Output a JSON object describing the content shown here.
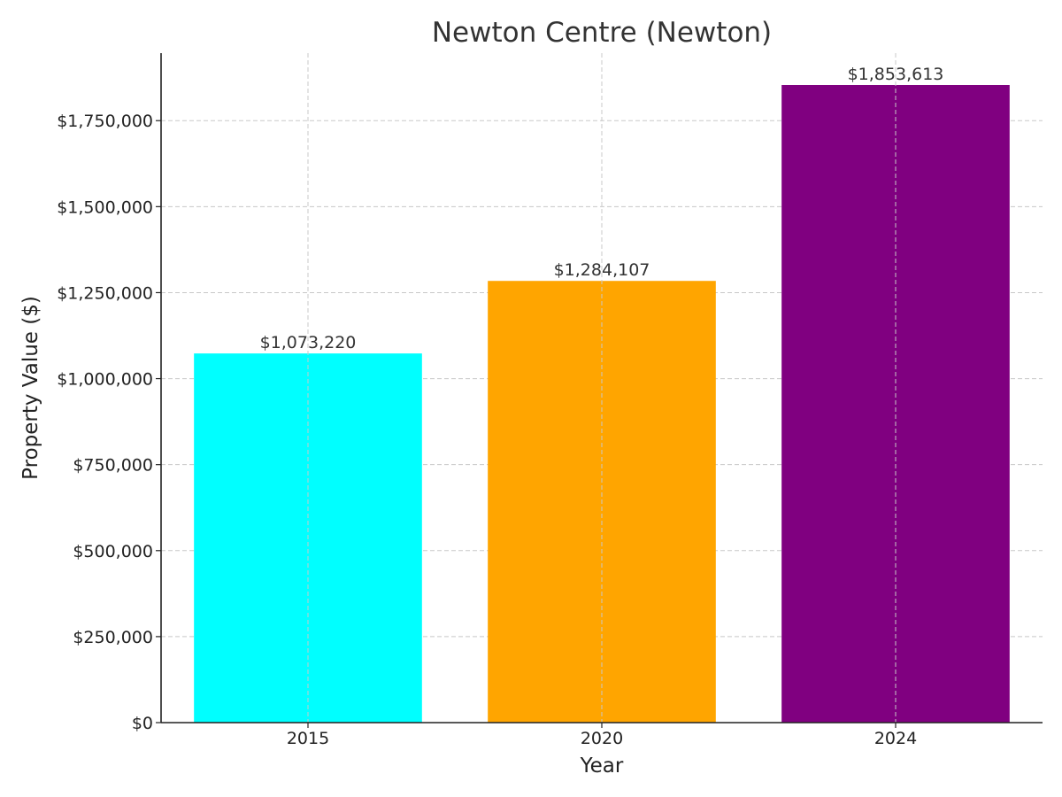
{
  "chart_data": {
    "type": "bar",
    "title": "Newton Centre (Newton)",
    "xlabel": "Year",
    "ylabel": "Property Value ($)",
    "categories": [
      "2015",
      "2020",
      "2024"
    ],
    "values": [
      1073220,
      1284107,
      1853613
    ],
    "value_labels": [
      "$1,073,220",
      "$1,284,107",
      "$1,853,613"
    ],
    "colors": [
      "#00ffff",
      "#ffa500",
      "#800080"
    ],
    "ylim": [
      0,
      1946294
    ],
    "yticks": [
      0,
      250000,
      500000,
      750000,
      1000000,
      1250000,
      1500000,
      1750000
    ],
    "ytick_labels": [
      "$0",
      "$250,000",
      "$500,000",
      "$750,000",
      "$1,000,000",
      "$1,250,000",
      "$1,500,000",
      "$1,750,000"
    ],
    "grid": true,
    "legend": "none"
  }
}
